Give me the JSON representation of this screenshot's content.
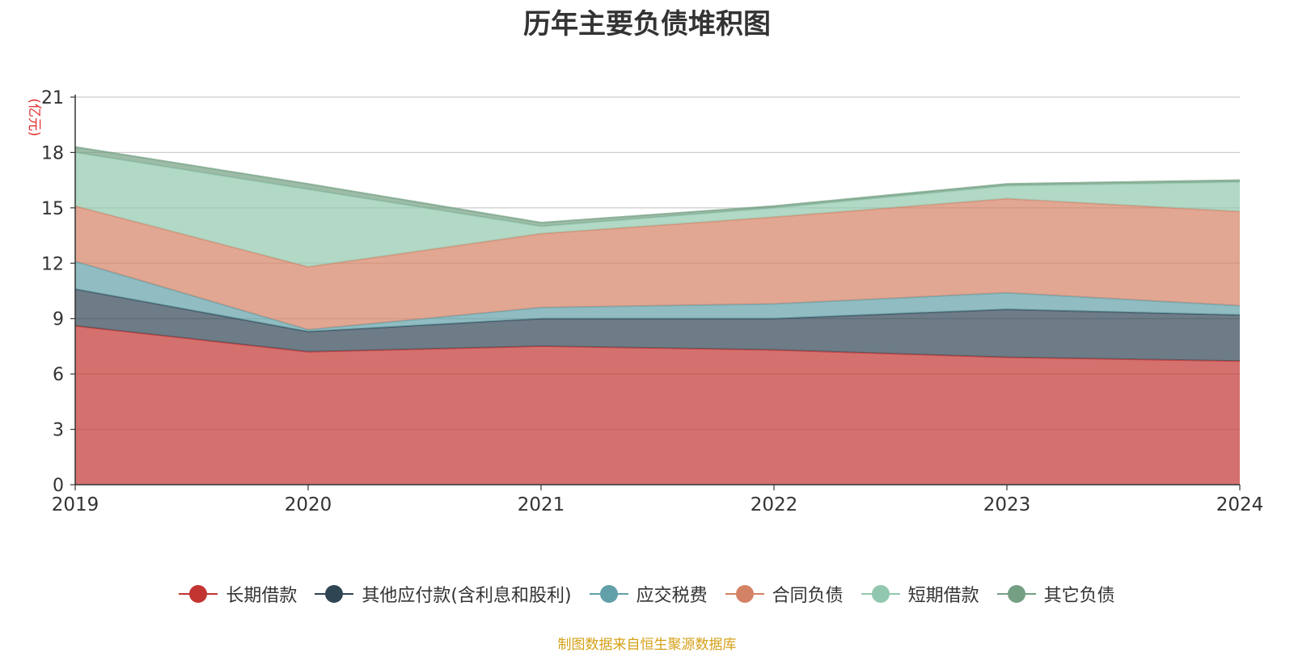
{
  "chart_data": {
    "type": "area",
    "stacked": true,
    "title": "历年主要负债堆积图",
    "ylabel": "(亿元)",
    "xlabel": "",
    "categories": [
      "2019",
      "2020",
      "2021",
      "2022",
      "2023",
      "2024"
    ],
    "ylim": [
      0,
      21
    ],
    "yticks": [
      "0",
      "3",
      "6",
      "9",
      "12",
      "15",
      "18",
      "21"
    ],
    "grid": true,
    "legend_position": "bottom",
    "series": [
      {
        "name": "长期借款",
        "color": "#c23531",
        "values": [
          8.6,
          7.2,
          7.5,
          7.3,
          6.9,
          6.7
        ]
      },
      {
        "name": "其他应付款(含利息和股利)",
        "color": "#2f4554",
        "values": [
          2.0,
          1.1,
          1.5,
          1.7,
          2.6,
          2.5
        ]
      },
      {
        "name": "应交税费",
        "color": "#61a0a8",
        "values": [
          1.5,
          0.1,
          0.6,
          0.8,
          0.9,
          0.5
        ]
      },
      {
        "name": "合同负债",
        "color": "#d48265",
        "values": [
          3.0,
          3.4,
          4.0,
          4.7,
          5.1,
          5.1
        ]
      },
      {
        "name": "短期借款",
        "color": "#91c7ae",
        "values": [
          2.9,
          4.2,
          0.4,
          0.5,
          0.7,
          1.6
        ]
      },
      {
        "name": "其它负债",
        "color": "#749f83",
        "values": [
          0.3,
          0.3,
          0.2,
          0.1,
          0.1,
          0.1
        ]
      }
    ]
  },
  "source_note": "制图数据来自恒生聚源数据库"
}
